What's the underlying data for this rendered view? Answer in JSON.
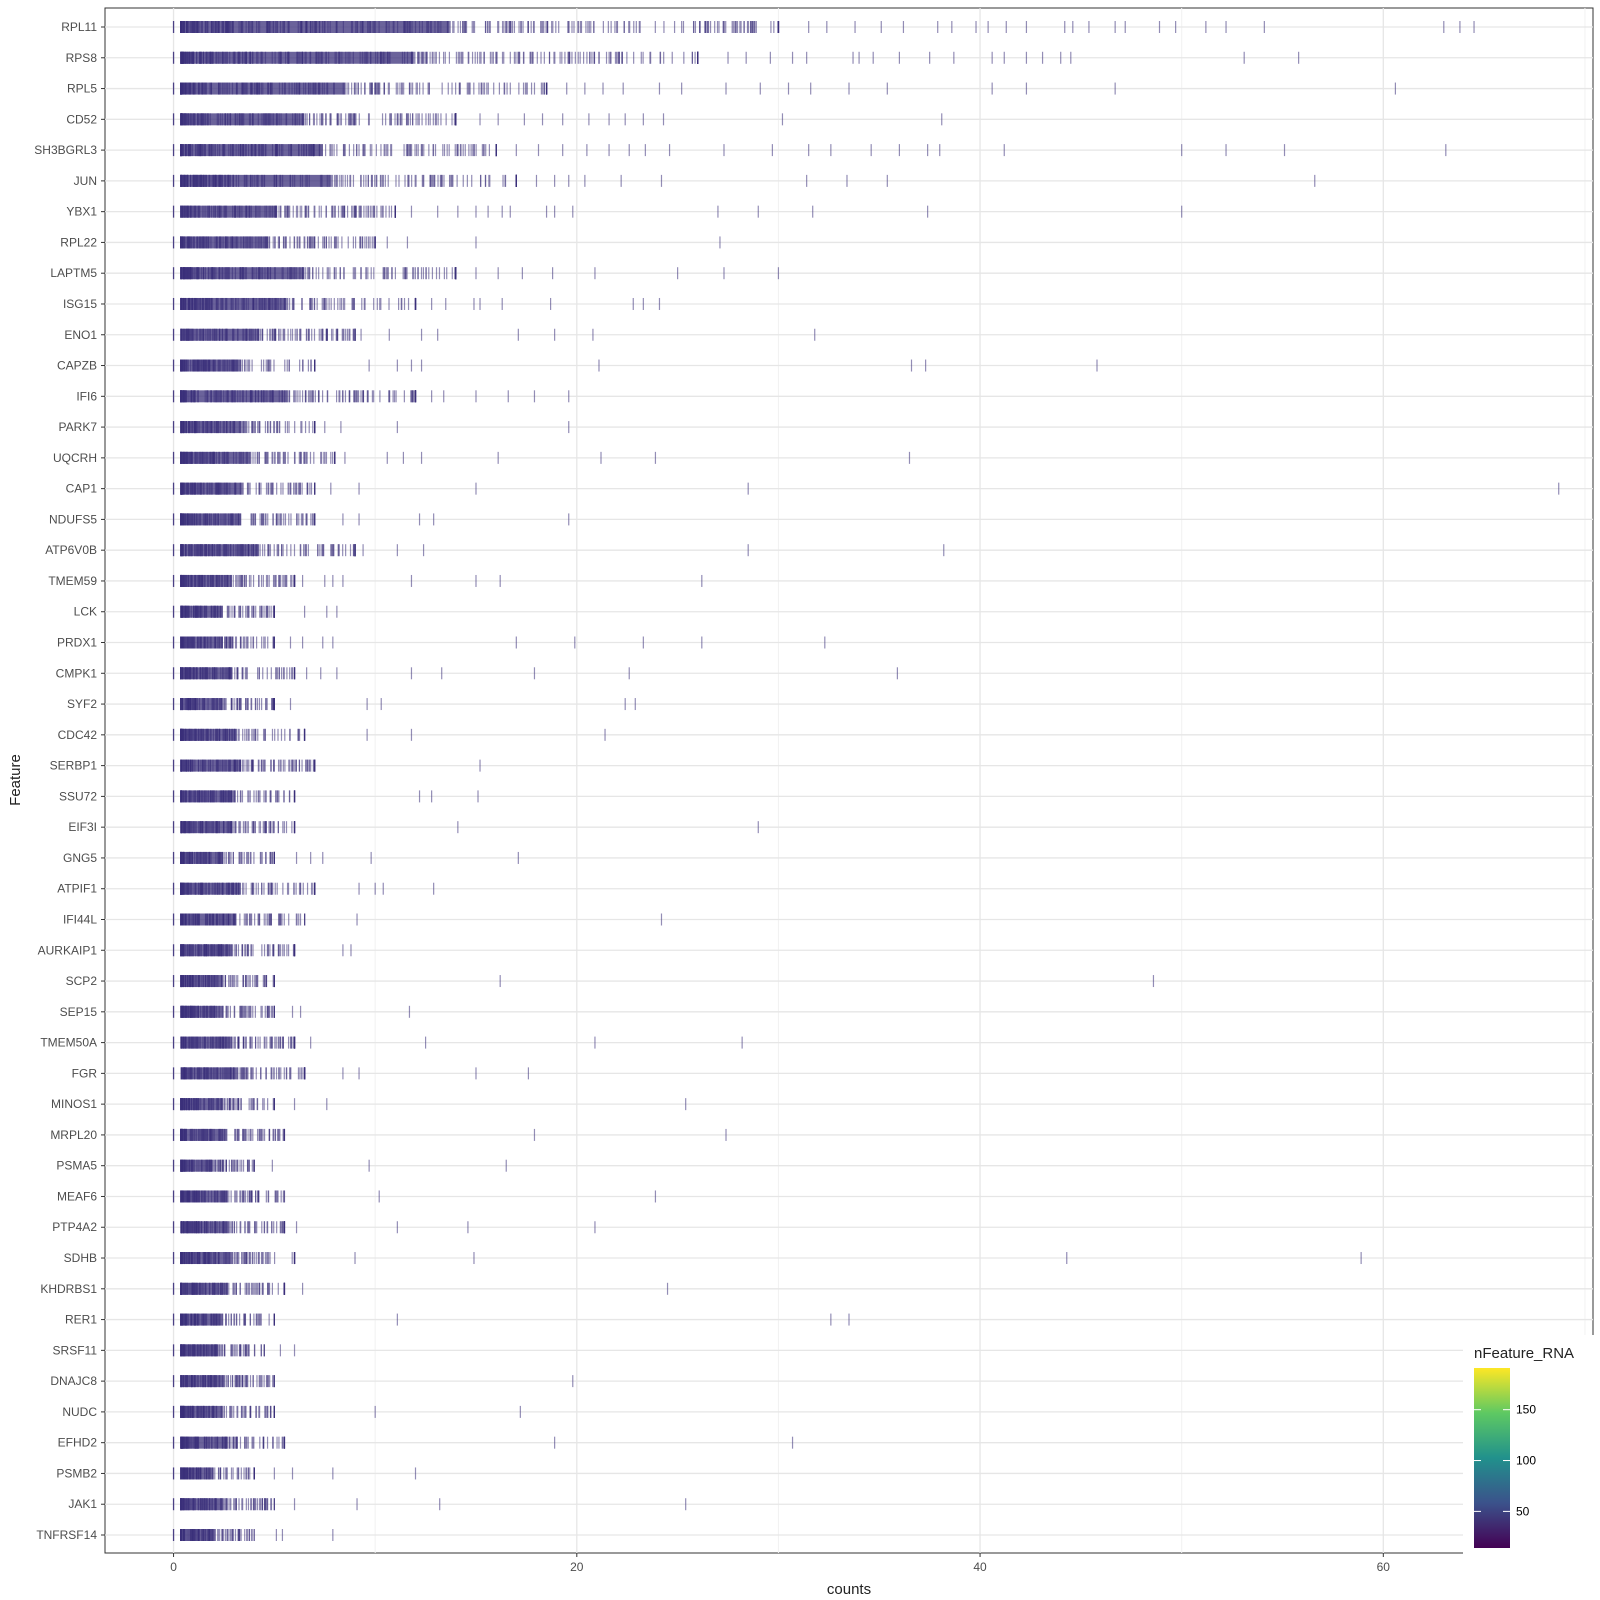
{
  "chart_data": {
    "type": "scatter",
    "xlabel": "counts",
    "ylabel": "Feature",
    "xlim": [
      -3.4,
      70.4
    ],
    "x_ticks": [
      0,
      20,
      40,
      60
    ],
    "x_minor_ticks": [
      10,
      30,
      50,
      70
    ],
    "grid": true,
    "legend": {
      "title": "nFeature_RNA",
      "placement": "bottom-right",
      "range": [
        14,
        191
      ],
      "ticks": [
        50,
        100,
        150
      ],
      "colormap": [
        "#440154",
        "#3b528b",
        "#21918c",
        "#5ec962",
        "#fde725"
      ]
    },
    "point_color": "#3a2f7a",
    "series": [
      {
        "feature": "RPL11",
        "dense_max": 30,
        "outliers": [
          31.5,
          32.4,
          33.8,
          35.1,
          36.2,
          37.9,
          38.6,
          39.8,
          40.4,
          41.3,
          42.3,
          44.2,
          44.6,
          45.4,
          46.7,
          47.2,
          48.9,
          49.7,
          51.2,
          52.2,
          54.1,
          63.0,
          63.8,
          64.5
        ]
      },
      {
        "feature": "RPS8",
        "dense_max": 26,
        "outliers": [
          27.5,
          28.4,
          29.6,
          30.7,
          31.4,
          33.7,
          34.0,
          34.7,
          36.0,
          37.5,
          38.7,
          40.6,
          41.2,
          42.3,
          43.1,
          44.0,
          44.5,
          53.1,
          55.8
        ]
      },
      {
        "feature": "RPL5",
        "dense_max": 18.5,
        "outliers": [
          19.5,
          20.4,
          21.3,
          22.3,
          24.1,
          25.2,
          27.4,
          29.1,
          30.5,
          31.6,
          33.5,
          35.4,
          40.6,
          42.3,
          46.7,
          60.6
        ]
      },
      {
        "feature": "CD52",
        "dense_max": 14,
        "outliers": [
          15.2,
          16.1,
          17.4,
          18.3,
          19.3,
          20.6,
          21.6,
          22.4,
          23.3,
          24.3,
          30.2,
          38.1
        ]
      },
      {
        "feature": "SH3BGRL3",
        "dense_max": 16,
        "outliers": [
          17.0,
          18.1,
          19.3,
          20.5,
          21.6,
          22.6,
          23.4,
          24.6,
          27.3,
          29.7,
          31.5,
          32.6,
          34.6,
          36.0,
          37.4,
          38.0,
          41.2,
          50.0,
          52.2,
          55.1,
          63.1
        ]
      },
      {
        "feature": "JUN",
        "dense_max": 17,
        "outliers": [
          18.0,
          18.9,
          19.6,
          20.4,
          22.2,
          24.2,
          31.4,
          33.4,
          35.4,
          56.6
        ]
      },
      {
        "feature": "YBX1",
        "dense_max": 11,
        "outliers": [
          11.8,
          13.1,
          14.1,
          15.0,
          15.6,
          16.3,
          16.7,
          18.5,
          18.9,
          19.8,
          27.0,
          29.0,
          31.7,
          37.4,
          50.0
        ]
      },
      {
        "feature": "RPL22",
        "dense_max": 10,
        "outliers": [
          10.6,
          11.6,
          15.0,
          27.1
        ]
      },
      {
        "feature": "LAPTM5",
        "dense_max": 14,
        "outliers": [
          15.0,
          16.1,
          17.3,
          18.8,
          20.9,
          25.0,
          27.3,
          30.0
        ]
      },
      {
        "feature": "ISG15",
        "dense_max": 12,
        "outliers": [
          12.8,
          13.5,
          14.9,
          15.2,
          16.3,
          18.7,
          22.8,
          23.3,
          24.1
        ]
      },
      {
        "feature": "ENO1",
        "dense_max": 9,
        "outliers": [
          9.3,
          10.7,
          12.3,
          13.1,
          17.1,
          18.9,
          20.8,
          31.8
        ]
      },
      {
        "feature": "CAPZB",
        "dense_max": 7,
        "outliers": [
          9.7,
          11.1,
          11.8,
          12.3,
          21.1,
          36.6,
          37.3,
          45.8
        ]
      },
      {
        "feature": "IFI6",
        "dense_max": 12,
        "outliers": [
          12.8,
          13.4,
          15.0,
          16.6,
          17.9,
          19.6
        ]
      },
      {
        "feature": "PARK7",
        "dense_max": 7,
        "outliers": [
          7.5,
          8.3,
          11.1,
          19.6
        ]
      },
      {
        "feature": "UQCRH",
        "dense_max": 8,
        "outliers": [
          8.5,
          10.6,
          11.4,
          12.3,
          16.1,
          21.2,
          23.9,
          36.5
        ]
      },
      {
        "feature": "CAP1",
        "dense_max": 7,
        "outliers": [
          7.8,
          9.2,
          15.0,
          28.5,
          68.7
        ]
      },
      {
        "feature": "NDUFS5",
        "dense_max": 7,
        "outliers": [
          8.4,
          9.2,
          12.2,
          12.9,
          19.6
        ]
      },
      {
        "feature": "ATP6V0B",
        "dense_max": 9,
        "outliers": [
          9.4,
          11.1,
          12.4,
          28.5,
          38.2
        ]
      },
      {
        "feature": "TMEM59",
        "dense_max": 6,
        "outliers": [
          6.4,
          7.5,
          7.9,
          8.4,
          11.8,
          15.0,
          16.2,
          26.2
        ]
      },
      {
        "feature": "LCK",
        "dense_max": 5,
        "outliers": [
          6.5,
          7.6,
          8.1
        ]
      },
      {
        "feature": "PRDX1",
        "dense_max": 5,
        "outliers": [
          5.8,
          6.4,
          7.4,
          7.9,
          17.0,
          19.9,
          23.3,
          26.2,
          32.3
        ]
      },
      {
        "feature": "CMPK1",
        "dense_max": 6,
        "outliers": [
          6.6,
          7.3,
          8.1,
          11.8,
          13.3,
          17.9,
          22.6,
          35.9
        ]
      },
      {
        "feature": "SYF2",
        "dense_max": 5,
        "outliers": [
          5.8,
          9.6,
          10.3,
          22.4,
          22.9
        ]
      },
      {
        "feature": "CDC42",
        "dense_max": 6.5,
        "outliers": [
          9.6,
          11.8,
          21.4
        ]
      },
      {
        "feature": "SERBP1",
        "dense_max": 7,
        "outliers": [
          15.2
        ]
      },
      {
        "feature": "SSU72",
        "dense_max": 6,
        "outliers": [
          12.2,
          12.8,
          15.1
        ]
      },
      {
        "feature": "EIF3I",
        "dense_max": 6,
        "outliers": [
          14.1,
          29.0
        ]
      },
      {
        "feature": "GNG5",
        "dense_max": 5,
        "outliers": [
          6.1,
          6.8,
          7.4,
          9.8,
          17.1
        ]
      },
      {
        "feature": "ATPIF1",
        "dense_max": 7,
        "outliers": [
          9.2,
          10.0,
          10.4,
          12.9
        ]
      },
      {
        "feature": "IFI44L",
        "dense_max": 6.5,
        "outliers": [
          9.1,
          24.2
        ]
      },
      {
        "feature": "AURKAIP1",
        "dense_max": 6,
        "outliers": [
          8.4,
          8.8
        ]
      },
      {
        "feature": "SCP2",
        "dense_max": 5,
        "outliers": [
          16.2,
          48.6
        ]
      },
      {
        "feature": "SEP15",
        "dense_max": 5,
        "outliers": [
          5.9,
          6.3,
          11.7
        ]
      },
      {
        "feature": "TMEM50A",
        "dense_max": 6,
        "outliers": [
          6.8,
          12.5,
          20.9,
          28.2
        ]
      },
      {
        "feature": "FGR",
        "dense_max": 6.5,
        "outliers": [
          8.4,
          9.2,
          15.0,
          17.6
        ]
      },
      {
        "feature": "MINOS1",
        "dense_max": 5,
        "outliers": [
          6.0,
          7.6,
          25.4
        ]
      },
      {
        "feature": "MRPL20",
        "dense_max": 5.5,
        "outliers": [
          17.9,
          27.4
        ]
      },
      {
        "feature": "PSMA5",
        "dense_max": 4,
        "outliers": [
          4.9,
          9.7,
          16.5
        ]
      },
      {
        "feature": "MEAF6",
        "dense_max": 5.5,
        "outliers": [
          10.2,
          23.9
        ]
      },
      {
        "feature": "PTP4A2",
        "dense_max": 5.5,
        "outliers": [
          6.1,
          11.1,
          14.6,
          20.9
        ]
      },
      {
        "feature": "SDHB",
        "dense_max": 6,
        "outliers": [
          9.0,
          14.9,
          44.3,
          58.9
        ]
      },
      {
        "feature": "KHDRBS1",
        "dense_max": 5.5,
        "outliers": [
          6.4,
          24.5
        ]
      },
      {
        "feature": "RER1",
        "dense_max": 5,
        "outliers": [
          11.1,
          32.6,
          33.5
        ]
      },
      {
        "feature": "SRSF11",
        "dense_max": 4.5,
        "outliers": [
          5.3,
          6.0
        ]
      },
      {
        "feature": "DNAJC8",
        "dense_max": 5,
        "outliers": [
          19.8
        ]
      },
      {
        "feature": "NUDC",
        "dense_max": 5,
        "outliers": [
          10.0,
          17.2
        ]
      },
      {
        "feature": "EFHD2",
        "dense_max": 5.5,
        "outliers": [
          18.9,
          30.7
        ]
      },
      {
        "feature": "PSMB2",
        "dense_max": 4,
        "outliers": [
          5.0,
          5.9,
          7.9,
          12.0
        ]
      },
      {
        "feature": "JAK1",
        "dense_max": 5,
        "outliers": [
          6.0,
          9.1,
          13.2,
          25.4
        ]
      },
      {
        "feature": "TNFRSF14",
        "dense_max": 4,
        "outliers": [
          5.1,
          5.4,
          7.9
        ]
      }
    ]
  }
}
